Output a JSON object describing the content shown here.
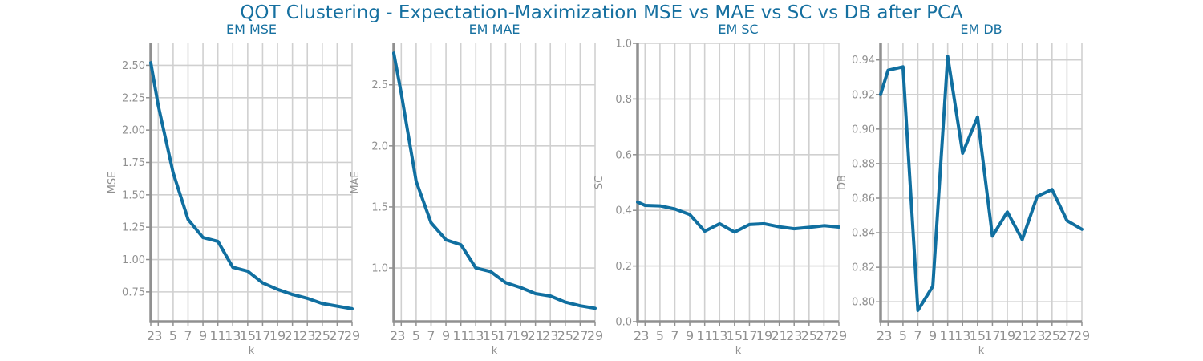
{
  "figure": {
    "title": "QOT Clustering - Expectation-Maximization MSE vs MAE vs SC vs DB after PCA",
    "line_color": "#106fa0",
    "grid_color": "#d0d0d0",
    "spine_color": "#909090",
    "tick_color": "#909090",
    "title_color": "#1670a0"
  },
  "chart_data": [
    {
      "type": "line",
      "title": "EM MSE",
      "xlabel": "k",
      "ylabel": "MSE",
      "xlim": [
        2,
        29
      ],
      "ylim": [
        0.52,
        2.67
      ],
      "x_ticks": [
        2,
        3,
        5,
        7,
        9,
        11,
        13,
        15,
        17,
        19,
        21,
        23,
        25,
        27,
        29
      ],
      "y_ticks": [
        0.75,
        1.0,
        1.25,
        1.5,
        1.75,
        2.0,
        2.25,
        2.5
      ],
      "y_tick_labels": [
        "0.75",
        "1.00",
        "1.25",
        "1.50",
        "1.75",
        "2.00",
        "2.25",
        "2.50"
      ],
      "x": [
        2,
        3,
        5,
        7,
        9,
        11,
        13,
        15,
        17,
        19,
        21,
        23,
        25,
        27,
        29
      ],
      "values": [
        2.52,
        2.19,
        1.67,
        1.31,
        1.17,
        1.14,
        0.94,
        0.91,
        0.82,
        0.77,
        0.73,
        0.7,
        0.66,
        0.64,
        0.62
      ],
      "grid": true
    },
    {
      "type": "line",
      "title": "EM MAE",
      "xlabel": "k",
      "ylabel": "MAE",
      "xlim": [
        2,
        29
      ],
      "ylim": [
        0.56,
        2.84
      ],
      "x_ticks": [
        2,
        3,
        5,
        7,
        9,
        11,
        13,
        15,
        17,
        19,
        21,
        23,
        25,
        27,
        29
      ],
      "y_ticks": [
        1.0,
        1.5,
        2.0,
        2.5
      ],
      "y_tick_labels": [
        "1.0",
        "1.5",
        "2.0",
        "2.5"
      ],
      "x": [
        2,
        3,
        5,
        7,
        9,
        11,
        13,
        15,
        17,
        19,
        21,
        23,
        25,
        27,
        29
      ],
      "values": [
        2.76,
        2.43,
        1.71,
        1.37,
        1.23,
        1.19,
        1.0,
        0.97,
        0.88,
        0.84,
        0.79,
        0.77,
        0.72,
        0.69,
        0.67
      ],
      "grid": true
    },
    {
      "type": "line",
      "title": "EM SC",
      "xlabel": "k",
      "ylabel": "SC",
      "xlim": [
        2,
        29
      ],
      "ylim": [
        0.0,
        1.0
      ],
      "x_ticks": [
        2,
        3,
        5,
        7,
        9,
        11,
        13,
        15,
        17,
        19,
        21,
        23,
        25,
        27,
        29
      ],
      "y_ticks": [
        0.0,
        0.2,
        0.4,
        0.6,
        0.8,
        1.0
      ],
      "y_tick_labels": [
        "0.0",
        "0.2",
        "0.4",
        "0.6",
        "0.8",
        "1.0"
      ],
      "x": [
        2,
        3,
        5,
        7,
        9,
        11,
        13,
        15,
        17,
        19,
        21,
        23,
        25,
        27,
        29
      ],
      "values": [
        0.43,
        0.418,
        0.416,
        0.405,
        0.385,
        0.325,
        0.352,
        0.322,
        0.349,
        0.352,
        0.341,
        0.334,
        0.339,
        0.345,
        0.34
      ],
      "grid": true
    },
    {
      "type": "line",
      "title": "EM DB",
      "xlabel": "k",
      "ylabel": "DB",
      "xlim": [
        2,
        29
      ],
      "ylim": [
        0.7885,
        0.9496
      ],
      "x_ticks": [
        2,
        3,
        5,
        7,
        9,
        11,
        13,
        15,
        17,
        19,
        21,
        23,
        25,
        27,
        29
      ],
      "y_ticks": [
        0.8,
        0.82,
        0.84,
        0.86,
        0.88,
        0.9,
        0.92,
        0.94
      ],
      "y_tick_labels": [
        "0.80",
        "0.82",
        "0.84",
        "0.86",
        "0.88",
        "0.90",
        "0.92",
        "0.94"
      ],
      "x": [
        2,
        3,
        5,
        7,
        9,
        11,
        13,
        15,
        17,
        19,
        21,
        23,
        25,
        27,
        29
      ],
      "values": [
        0.92,
        0.934,
        0.936,
        0.795,
        0.809,
        0.942,
        0.886,
        0.907,
        0.838,
        0.852,
        0.836,
        0.861,
        0.865,
        0.847,
        0.842
      ],
      "grid": true
    }
  ]
}
